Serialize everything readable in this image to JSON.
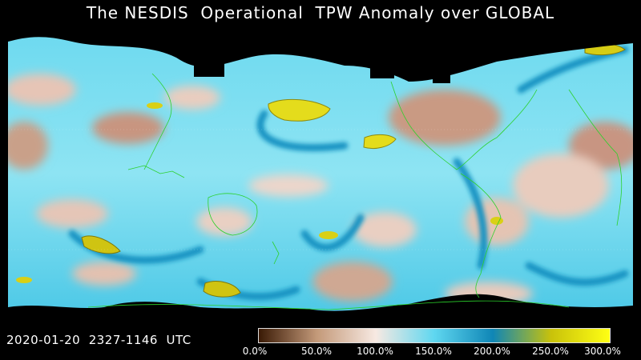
{
  "title": "The NESDIS  Operational  TPW Anomaly over GLOBAL",
  "timestamp": "2020-01-20  2327-1146  UTC",
  "colorbar": {
    "ticks": [
      "0.0%",
      "50.0%",
      "100.0%",
      "150.0%",
      "200.0%",
      "250.0%",
      "300.0%"
    ],
    "min": 0,
    "max": 300,
    "stops": [
      {
        "value": 0,
        "color": "#3a1a05"
      },
      {
        "value": 50,
        "color": "#c49a7a"
      },
      {
        "value": 100,
        "color": "#f7e9e2"
      },
      {
        "value": 150,
        "color": "#5fd7f0"
      },
      {
        "value": 200,
        "color": "#0f86b6"
      },
      {
        "value": 250,
        "color": "#c9c20a"
      },
      {
        "value": 300,
        "color": "#ffff14"
      }
    ]
  },
  "map_colors": {
    "nodata": "#000000",
    "coastline": "#2bd12b",
    "moist": "#4fd3ee",
    "dry": "#d4ab96",
    "extreme": "#e8e020"
  }
}
